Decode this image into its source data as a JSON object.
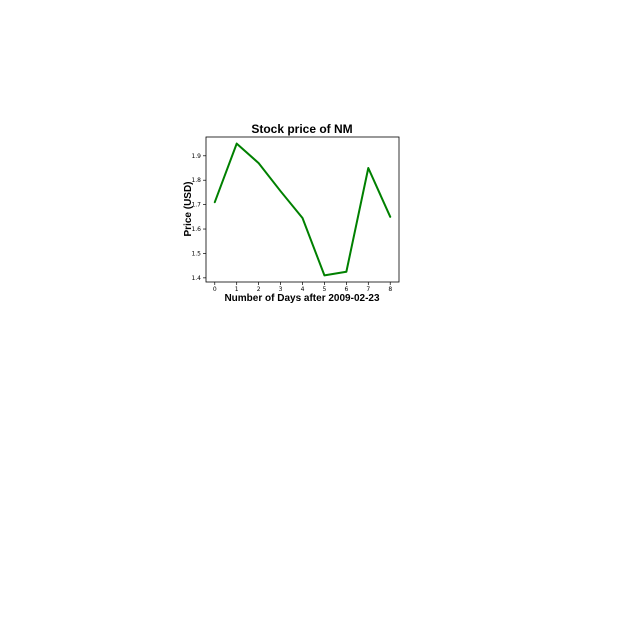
{
  "chart_data": {
    "type": "line",
    "title": "Stock price of NM",
    "xlabel": "Number of Days after 2009-02-23",
    "ylabel": "Price (USD)",
    "x": [
      0,
      1,
      2,
      3,
      4,
      5,
      6,
      7,
      8
    ],
    "series": [
      {
        "name": "",
        "values": [
          1.71,
          1.95,
          1.87,
          1.755,
          1.645,
          1.41,
          1.425,
          1.85,
          1.65
        ],
        "color": "#008000"
      }
    ],
    "xticks": [
      0,
      1,
      2,
      3,
      4,
      5,
      6,
      7,
      8
    ],
    "yticks": [
      1.4,
      1.5,
      1.6,
      1.7,
      1.8,
      1.9
    ],
    "xlim": [
      -0.4,
      8.4
    ],
    "ylim": [
      1.383,
      1.977
    ],
    "grid": false,
    "legend": "none"
  }
}
